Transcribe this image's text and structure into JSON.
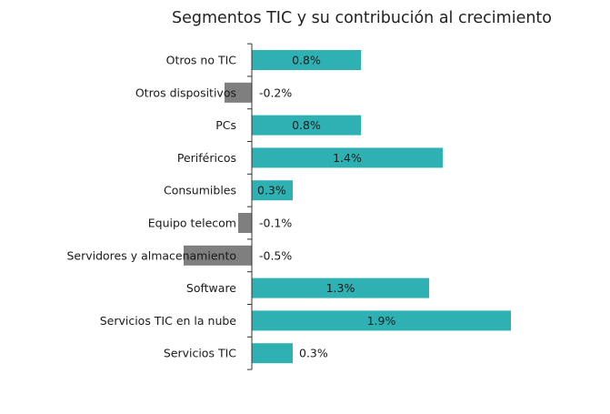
{
  "chart_data": {
    "type": "bar",
    "orientation": "horizontal",
    "title": "Segmentos TIC y su contribución al crecimiento",
    "xlabel": "",
    "ylabel": "",
    "categories": [
      "Otros no TIC",
      "Otros dispositivos",
      "PCs",
      "Periféricos",
      "Consumibles",
      "Equipo telecom",
      "Servidores y almacenamiento",
      "Software",
      "Servicios TIC en la nube",
      "Servicios TIC"
    ],
    "values": [
      0.8,
      -0.2,
      0.8,
      1.4,
      0.3,
      -0.1,
      -0.5,
      1.3,
      1.9,
      0.3
    ],
    "value_labels": [
      "0.8%",
      "-0.2%",
      "0.8%",
      "1.4%",
      "0.3%",
      "-0.1%",
      "-0.5%",
      "1.3%",
      "1.9%",
      "0.3%"
    ],
    "colors": {
      "positive": "#2fb1b3",
      "negative": "#7f7f7f"
    },
    "grid": false,
    "legend": "none"
  }
}
